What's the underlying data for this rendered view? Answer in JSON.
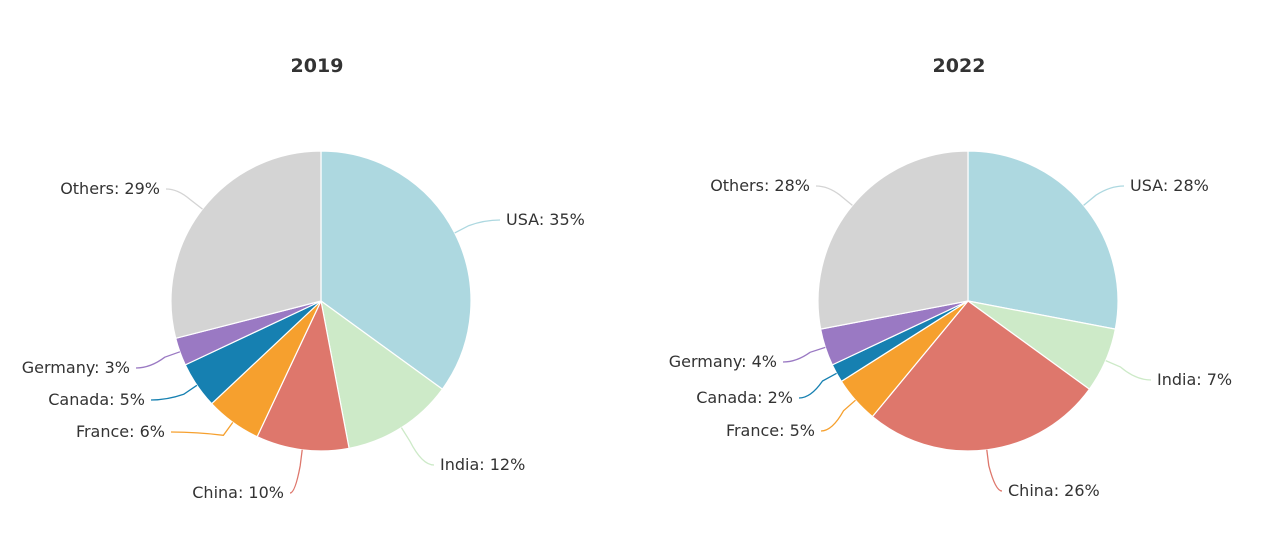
{
  "chart_data": [
    {
      "type": "pie",
      "title": "2019",
      "categories": [
        "USA",
        "India",
        "China",
        "France",
        "Canada",
        "Germany",
        "Others"
      ],
      "values": [
        35,
        12,
        10,
        6,
        5,
        3,
        29
      ],
      "labels": [
        "USA: 35%",
        "India: 12%",
        "China: 10%",
        "France: 6%",
        "Canada: 5%",
        "Germany: 3%",
        "Others: 29%"
      ],
      "colors": [
        "#add8e0",
        "#cdeac8",
        "#de776c",
        "#f6a02e",
        "#1680b1",
        "#9a79c3",
        "#d4d4d4"
      ]
    },
    {
      "type": "pie",
      "title": "2022",
      "categories": [
        "USA",
        "India",
        "China",
        "France",
        "Canada",
        "Germany",
        "Others"
      ],
      "values": [
        28,
        7,
        26,
        5,
        2,
        4,
        28
      ],
      "labels": [
        "USA: 28%",
        "India: 7%",
        "China: 26%",
        "France: 5%",
        "Canada: 2%",
        "Germany: 4%",
        "Others: 28%"
      ],
      "colors": [
        "#add8e0",
        "#cdeac8",
        "#de776c",
        "#f6a02e",
        "#1680b1",
        "#9a79c3",
        "#d4d4d4"
      ]
    }
  ]
}
